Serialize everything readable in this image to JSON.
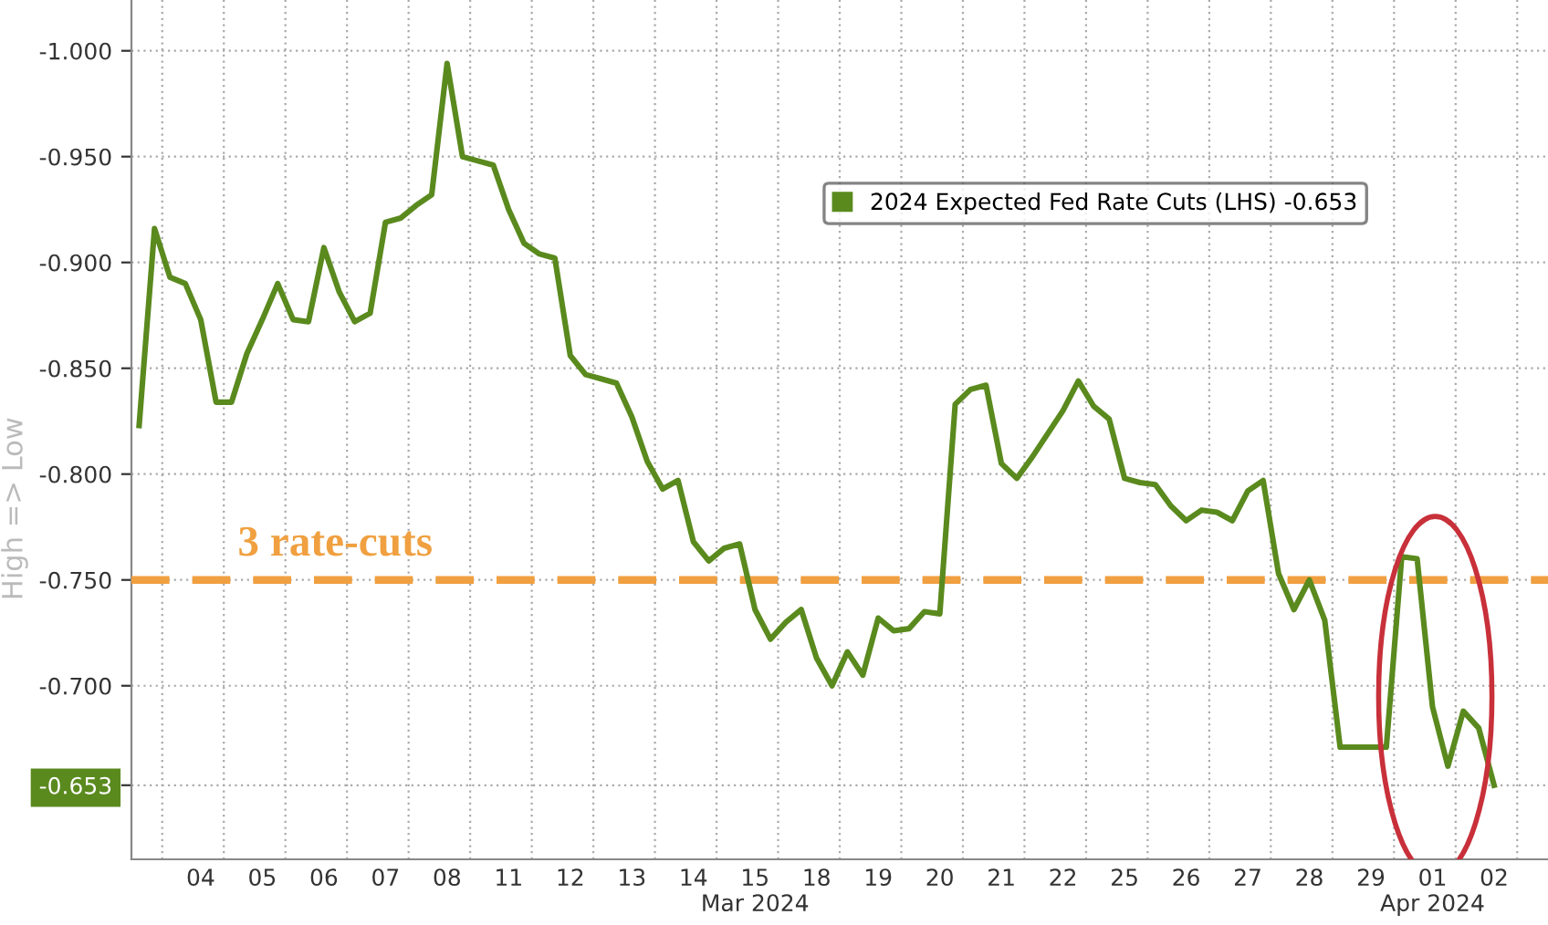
{
  "chart_data": {
    "type": "line",
    "ylabel": "High => Low",
    "legend": "top right",
    "grid": true,
    "line_style": "solid",
    "marker": "none",
    "ylim": [
      -0.618,
      -1.024
    ],
    "yticks": [
      {
        "value": -1.0,
        "label": "-1.000"
      },
      {
        "value": -0.95,
        "label": "-0.950"
      },
      {
        "value": -0.9,
        "label": "-0.900"
      },
      {
        "value": -0.85,
        "label": "-0.850"
      },
      {
        "value": -0.8,
        "label": "-0.800"
      },
      {
        "value": -0.75,
        "label": "-0.750"
      },
      {
        "value": -0.7,
        "label": "-0.700"
      },
      {
        "value": -0.653,
        "label": "-0.653"
      }
    ],
    "categories": [
      null,
      null,
      null,
      null,
      "04",
      null,
      null,
      null,
      "05",
      null,
      null,
      null,
      "06",
      null,
      null,
      null,
      "07",
      null,
      null,
      null,
      "08",
      null,
      null,
      null,
      "11",
      null,
      null,
      null,
      "12",
      null,
      null,
      null,
      "13",
      null,
      null,
      null,
      "14",
      null,
      null,
      null,
      "15\nMar 2024",
      null,
      null,
      null,
      "18",
      null,
      null,
      null,
      "19",
      null,
      null,
      null,
      "20",
      null,
      null,
      null,
      "21",
      null,
      null,
      null,
      "22",
      null,
      null,
      null,
      "25",
      null,
      null,
      null,
      "26",
      null,
      null,
      null,
      "27",
      null,
      null,
      null,
      "28",
      null,
      null,
      null,
      "29",
      null,
      null,
      null,
      "01\nApr 2024",
      null,
      null,
      null,
      "02",
      null,
      null,
      null
    ],
    "ref_lines": [
      {
        "axis": "y",
        "value": -0.75,
        "label": "3 rate-cuts",
        "color": "#f0a040",
        "line_style": "dashed"
      }
    ],
    "series": [
      {
        "name": "2024 Expected Fed Rate Cuts (LHS) -0.653",
        "color": "#5a8a1e",
        "values": [
          -0.823,
          -0.916,
          -0.893,
          -0.89,
          -0.873,
          -0.834,
          -0.834,
          -0.857,
          -0.873,
          -0.89,
          -0.873,
          -0.872,
          -0.907,
          -0.886,
          -0.872,
          -0.876,
          -0.919,
          -0.921,
          -0.927,
          -0.932,
          -0.994,
          -0.95,
          -0.948,
          -0.946,
          -0.925,
          -0.909,
          -0.904,
          -0.902,
          -0.856,
          -0.847,
          -0.845,
          -0.843,
          -0.827,
          -0.806,
          -0.793,
          -0.797,
          -0.768,
          -0.759,
          -0.765,
          -0.767,
          -0.736,
          -0.722,
          -0.73,
          -0.736,
          -0.713,
          -0.7,
          -0.716,
          -0.705,
          -0.732,
          -0.726,
          -0.727,
          -0.735,
          -0.734,
          -0.833,
          -0.84,
          -0.842,
          -0.805,
          -0.798,
          -0.808,
          -0.819,
          -0.83,
          -0.844,
          -0.832,
          -0.826,
          -0.798,
          -0.796,
          -0.795,
          -0.785,
          -0.778,
          -0.783,
          -0.782,
          -0.778,
          -0.792,
          -0.797,
          -0.753,
          -0.736,
          -0.75,
          -0.731,
          -0.671,
          -0.671,
          -0.671,
          -0.671,
          -0.761,
          -0.76,
          -0.69,
          -0.662,
          -0.688,
          -0.68,
          -0.653,
          null,
          null,
          null
        ]
      }
    ]
  }
}
